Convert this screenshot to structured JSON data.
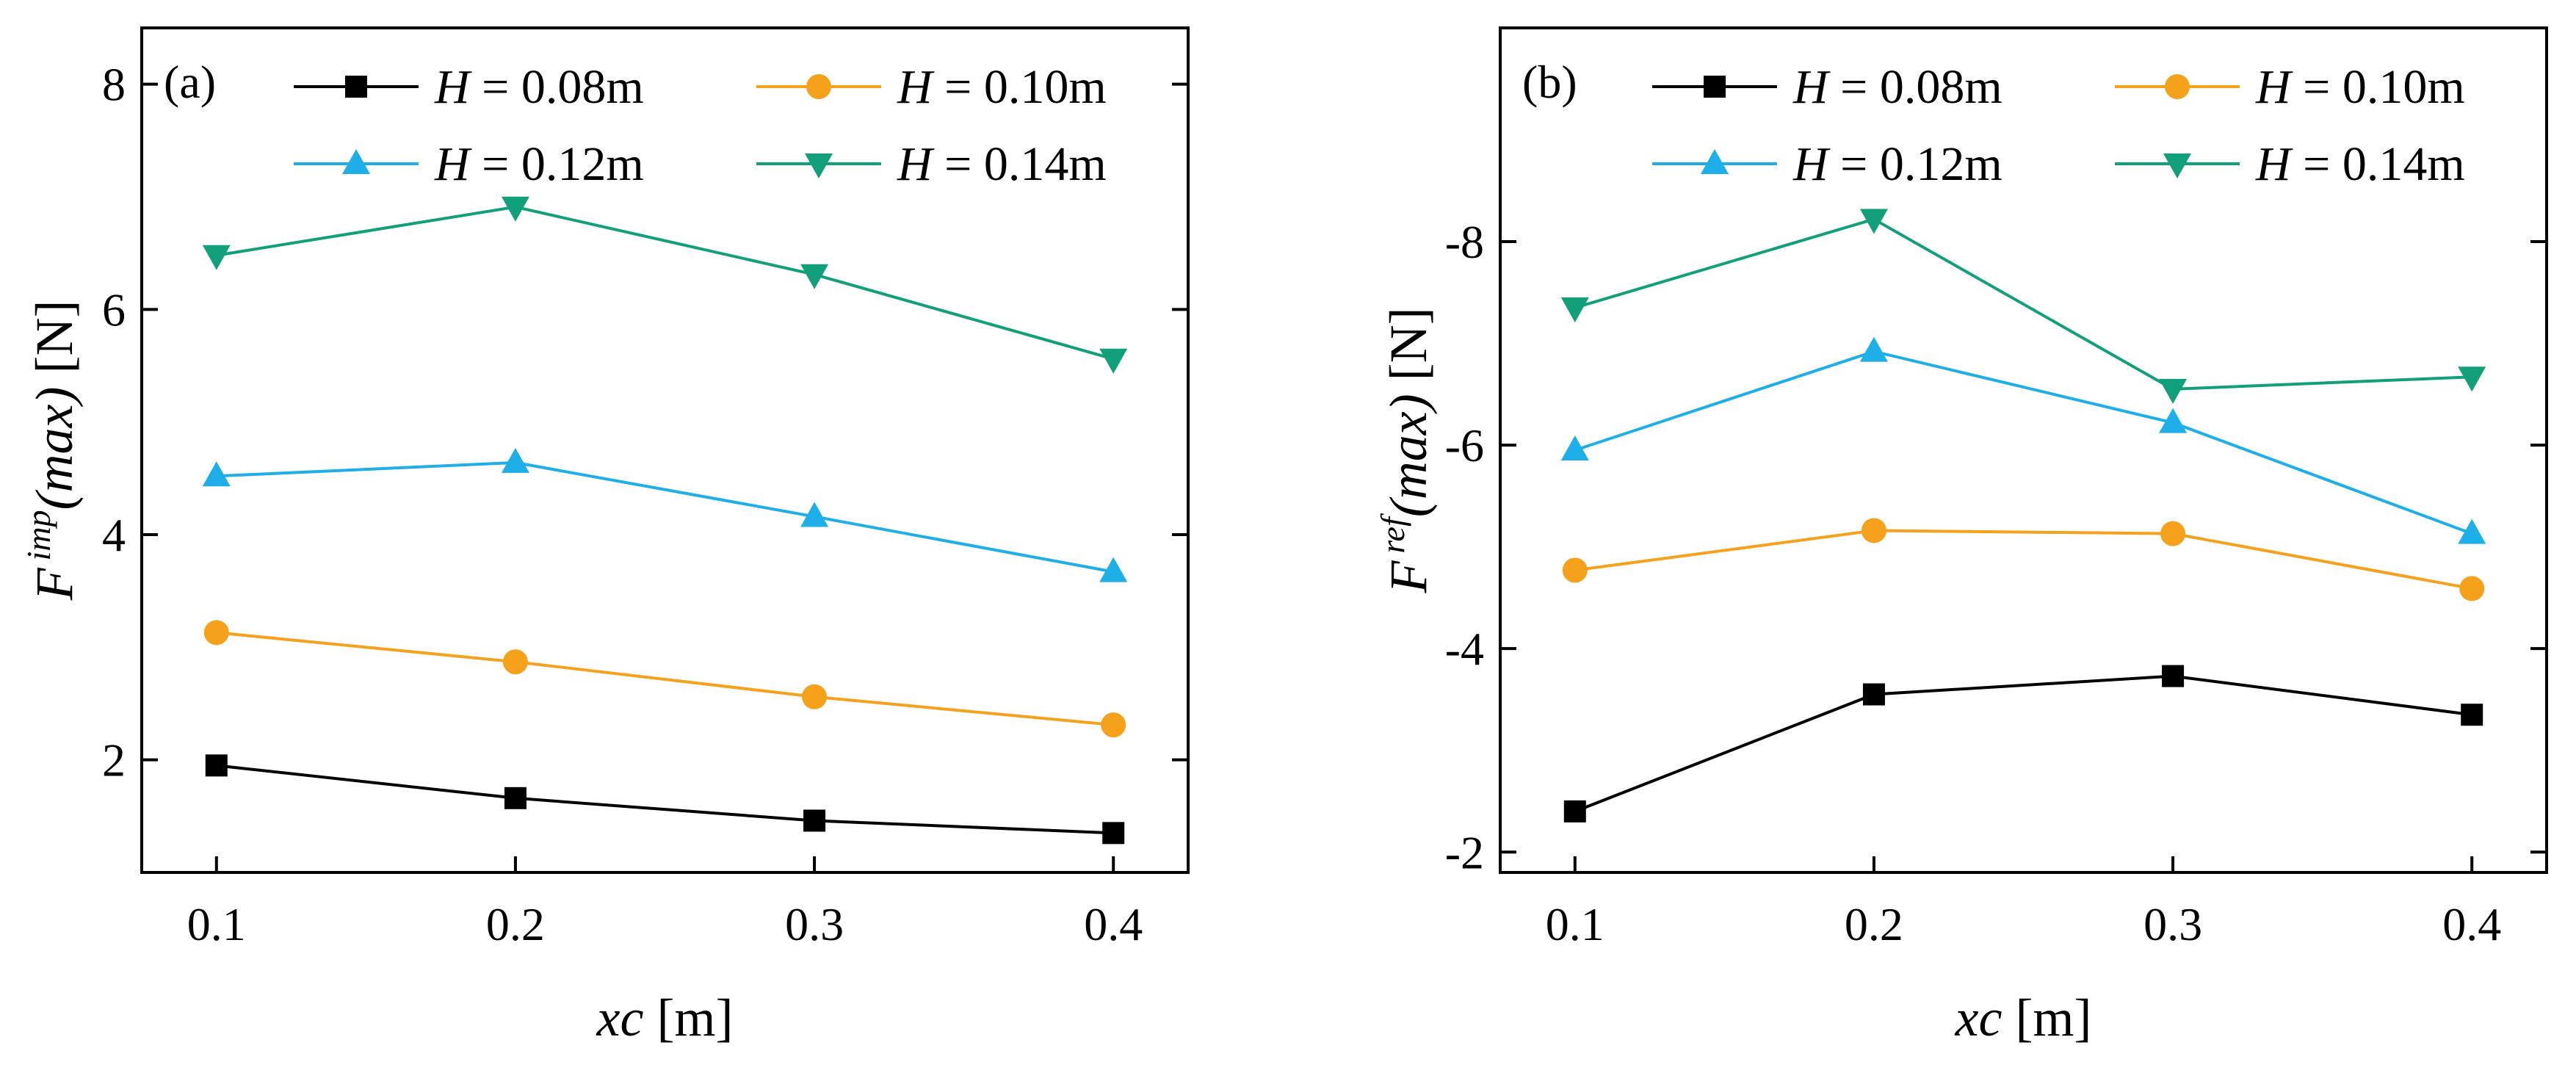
{
  "chart_data": [
    {
      "type": "line",
      "panel_label": "(a)",
      "x": [
        0.1,
        0.2,
        0.3,
        0.4
      ],
      "xlabel_var": "xc",
      "xlabel_unit": " [m]",
      "ylabel_base": "F",
      "ylabel_sup": "imp",
      "ylabel_arg": "(max)",
      "ylabel_unit": " [N]",
      "xlim": [
        0.075,
        0.425
      ],
      "ylim": [
        1.0,
        8.5
      ],
      "xticks": [
        0.1,
        0.2,
        0.3,
        0.4
      ],
      "xtick_labels": [
        "0.1",
        "0.2",
        "0.3",
        "0.4"
      ],
      "yticks": [
        2,
        4,
        6,
        8
      ],
      "ytick_labels": [
        "2",
        "4",
        "6",
        "8"
      ],
      "grid": false,
      "legend_position": "top-right",
      "series": [
        {
          "name_var": "H",
          "name_value": " = 0.08m",
          "color": "#000000",
          "marker": "square",
          "values": [
            1.95,
            1.66,
            1.46,
            1.35
          ]
        },
        {
          "name_var": "H",
          "name_value": " = 0.10m",
          "color": "#F5A11C",
          "marker": "circle",
          "values": [
            3.13,
            2.87,
            2.56,
            2.31
          ]
        },
        {
          "name_var": "H",
          "name_value": " = 0.12m",
          "color": "#1EAEE8",
          "marker": "triangle-up",
          "values": [
            4.52,
            4.64,
            4.16,
            3.67
          ]
        },
        {
          "name_var": "H",
          "name_value": " = 0.14m",
          "color": "#12A07A",
          "marker": "triangle-down",
          "values": [
            6.48,
            6.91,
            6.31,
            5.56
          ]
        }
      ]
    },
    {
      "type": "line",
      "panel_label": "(b)",
      "x": [
        0.1,
        0.2,
        0.3,
        0.4
      ],
      "xlabel_var": "xc",
      "xlabel_unit": " [m]",
      "ylabel_base": "F",
      "ylabel_sup": "ref",
      "ylabel_arg": "(max)",
      "ylabel_unit": " [N]",
      "xlim": [
        0.075,
        0.425
      ],
      "ylim": [
        -1.8,
        -10.1
      ],
      "yaxis_inverted": true,
      "xticks": [
        0.1,
        0.2,
        0.3,
        0.4
      ],
      "xtick_labels": [
        "0.1",
        "0.2",
        "0.3",
        "0.4"
      ],
      "yticks": [
        -2,
        -4,
        -6,
        -8
      ],
      "ytick_labels": [
        "-2",
        "-4",
        "-6",
        "-8"
      ],
      "grid": false,
      "legend_position": "top-right",
      "series": [
        {
          "name_var": "H",
          "name_value": " = 0.08m",
          "color": "#000000",
          "marker": "square",
          "values": [
            -2.4,
            -3.55,
            -3.73,
            -3.35
          ]
        },
        {
          "name_var": "H",
          "name_value": " = 0.10m",
          "color": "#F5A11C",
          "marker": "circle",
          "values": [
            -4.77,
            -5.16,
            -5.13,
            -4.59
          ]
        },
        {
          "name_var": "H",
          "name_value": " = 0.12m",
          "color": "#1EAEE8",
          "marker": "triangle-up",
          "values": [
            -5.95,
            -6.92,
            -6.22,
            -5.13
          ]
        },
        {
          "name_var": "H",
          "name_value": " = 0.14m",
          "color": "#12A07A",
          "marker": "triangle-down",
          "values": [
            -7.35,
            -8.22,
            -6.55,
            -6.67
          ]
        }
      ]
    }
  ]
}
